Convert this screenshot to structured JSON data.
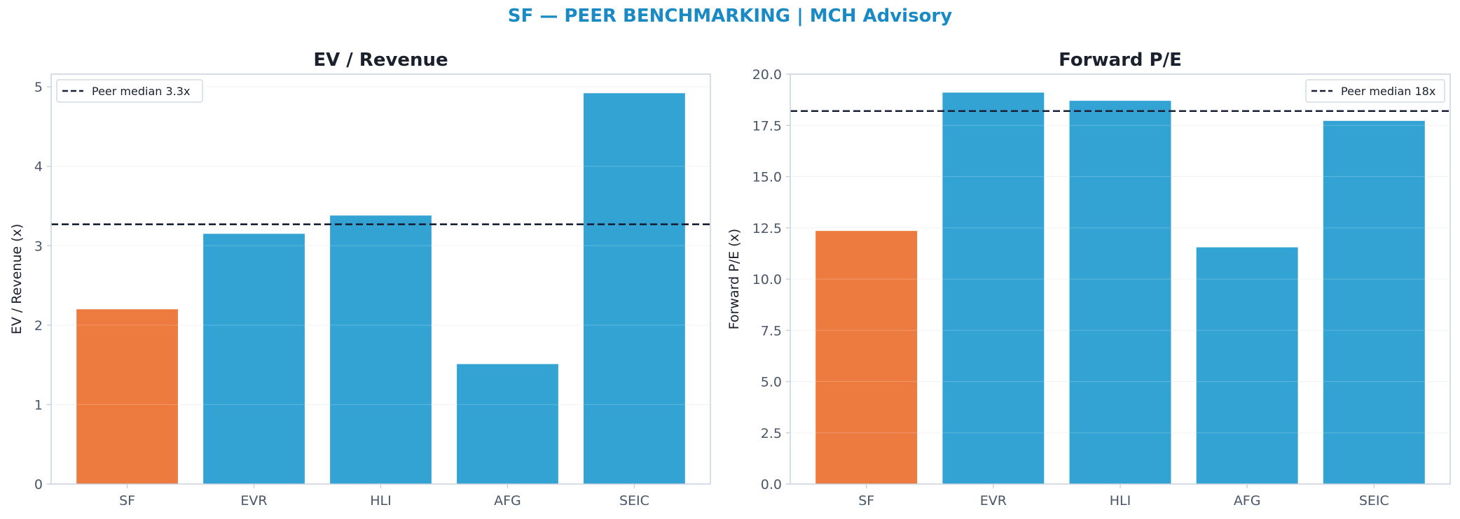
{
  "suptitle": "SF — PEER BENCHMARKING | MCH Advisory",
  "colors": {
    "title": "#1a8ac4",
    "highlight": "#ed7b3f",
    "peer": "#33a3d4",
    "median_line": "#1a2035",
    "axis": "#c9d2de",
    "grid": "#eef1f5"
  },
  "chart_data": [
    {
      "type": "bar",
      "title": "EV / Revenue",
      "ylabel": "EV / Revenue (x)",
      "xlabel": "",
      "categories": [
        "SF",
        "EVR",
        "HLI",
        "AFG",
        "SEIC"
      ],
      "values": [
        2.2,
        3.15,
        3.38,
        1.51,
        4.92
      ],
      "highlight": "SF",
      "ylim": [
        0,
        5.16
      ],
      "yticks": [
        0,
        1,
        2,
        3,
        4,
        5
      ],
      "ytick_labels": [
        "0",
        "1",
        "2",
        "3",
        "4",
        "5"
      ],
      "reference_line": {
        "value": 3.27,
        "label": "Peer median 3.3x",
        "style": "dashed"
      },
      "legend_position": "top-left",
      "grid": true
    },
    {
      "type": "bar",
      "title": "Forward P/E",
      "ylabel": "Forward P/E (x)",
      "xlabel": "",
      "categories": [
        "SF",
        "EVR",
        "HLI",
        "AFG",
        "SEIC"
      ],
      "values": [
        12.35,
        19.1,
        18.7,
        11.55,
        17.72
      ],
      "highlight": "SF",
      "ylim": [
        0,
        20
      ],
      "yticks": [
        0,
        2.5,
        5,
        7.5,
        10,
        12.5,
        15,
        17.5,
        20
      ],
      "ytick_labels": [
        "0.0",
        "2.5",
        "5.0",
        "7.5",
        "10.0",
        "12.5",
        "15.0",
        "17.5",
        "20.0"
      ],
      "reference_line": {
        "value": 18.2,
        "label": "Peer median 18x",
        "style": "dashed"
      },
      "legend_position": "top-right",
      "grid": true
    }
  ]
}
